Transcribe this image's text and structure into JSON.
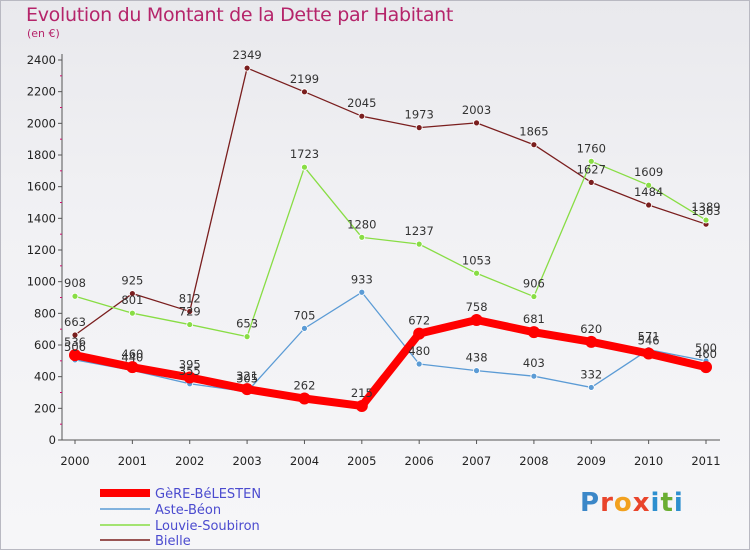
{
  "header": {
    "title": "Evolution du Montant de la Dette par Habitant",
    "unit": "(en €)"
  },
  "logo": {
    "letters": [
      "P",
      "r",
      "o",
      "x",
      "i",
      "t",
      "i"
    ],
    "colors": [
      "#3b87c8",
      "#e9442b",
      "#f2a11f",
      "#e9442b",
      "#2d8fcf",
      "#6aae32",
      "#2d8fcf"
    ]
  },
  "chart_data": {
    "type": "line",
    "title": "Evolution du Montant de la Dette par Habitant",
    "ylabel": "(en €)",
    "x": [
      "2000",
      "2001",
      "2002",
      "2003",
      "2004",
      "2005",
      "2006",
      "2007",
      "2008",
      "2009",
      "2010",
      "2011"
    ],
    "ylim": [
      0,
      2400
    ],
    "yticks": [
      0,
      200,
      400,
      600,
      800,
      1000,
      1200,
      1400,
      1600,
      1800,
      2000,
      2200,
      2400
    ],
    "grid": false,
    "legend": "bottom-left",
    "series": [
      {
        "name": "GèRE-BéLESTEN",
        "color": "#ff0000",
        "values": [
          536,
          460,
          395,
          321,
          262,
          215,
          672,
          758,
          681,
          620,
          546,
          460
        ],
        "labels": [
          "536",
          "460",
          "395",
          "321",
          "262",
          "215",
          "672",
          "758",
          "681",
          "620",
          "546",
          "460"
        ]
      },
      {
        "name": "Aste-Béon",
        "color": "#5b9bd5",
        "values": [
          506,
          440,
          355,
          305,
          705,
          933,
          480,
          438,
          403,
          332,
          571,
          500
        ],
        "labels": [
          "506",
          "440",
          "355",
          "305",
          "705",
          "933",
          "480",
          "438",
          "403",
          "332",
          "571",
          "500"
        ]
      },
      {
        "name": "Louvie-Soubiron",
        "color": "#88dd44",
        "values": [
          908,
          801,
          729,
          653,
          1723,
          1280,
          1237,
          1053,
          906,
          1760,
          1609,
          1389
        ],
        "labels": [
          "908",
          "801",
          "729",
          "653",
          "1723",
          "1280",
          "1237",
          "1053",
          "906",
          "1760",
          "1609",
          "1389"
        ]
      },
      {
        "name": "Bielle",
        "color": "#7a1e1e",
        "values": [
          663,
          925,
          812,
          2349,
          2199,
          2045,
          1973,
          2003,
          1865,
          1627,
          1484,
          1363
        ],
        "labels": [
          "663",
          "925",
          "812",
          "2349",
          "2199",
          "2045",
          "1973",
          "2003",
          "1865",
          "1627",
          "1484",
          "1363"
        ]
      }
    ]
  }
}
